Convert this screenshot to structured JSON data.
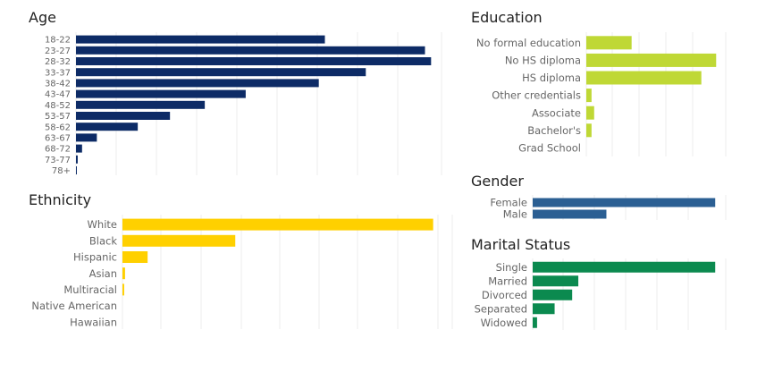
{
  "chart_data": [
    {
      "id": "age",
      "type": "bar",
      "orientation": "horizontal",
      "title": "Age",
      "color": "#0d2b66",
      "categories": [
        "18-22",
        "23-27",
        "28-32",
        "33-37",
        "38-42",
        "43-47",
        "48-52",
        "53-57",
        "58-62",
        "63-67",
        "68-72",
        "73-77",
        "78+"
      ],
      "values": [
        286,
        401,
        408,
        333,
        279,
        195,
        148,
        108,
        71,
        24,
        7,
        2,
        1
      ],
      "xlim": [
        0,
        420
      ],
      "grid": true
    },
    {
      "id": "ethnicity",
      "type": "bar",
      "orientation": "horizontal",
      "title": "Ethnicity",
      "color": "#ffd000",
      "categories": [
        "White",
        "Black",
        "Hispanic",
        "Asian",
        "Multiracial",
        "Native American",
        "Hawaiian"
      ],
      "values": [
        358,
        130,
        29,
        3,
        2,
        0,
        0
      ],
      "xlim": [
        0,
        380
      ],
      "grid": true
    },
    {
      "id": "education",
      "type": "bar",
      "orientation": "horizontal",
      "title": "Education",
      "color": "#bfd835",
      "categories": [
        "No formal education",
        "No HS diploma",
        "HS diploma",
        "Other credentials",
        "Associate",
        "Bachelor's",
        "Grad School"
      ],
      "values": [
        52,
        149,
        132,
        6,
        9,
        6,
        0
      ],
      "xlim": [
        0,
        160
      ],
      "grid": true
    },
    {
      "id": "gender",
      "type": "bar",
      "orientation": "horizontal",
      "title": "Gender",
      "color": "#2b5f93",
      "categories": [
        "Female",
        "Male"
      ],
      "values": [
        208,
        84
      ],
      "xlim": [
        0,
        220
      ],
      "grid": true
    },
    {
      "id": "marital",
      "type": "bar",
      "orientation": "horizontal",
      "title": "Marital Status",
      "color": "#0b8a4f",
      "categories": [
        "Single",
        "Married",
        "Divorced",
        "Separated",
        "Widowed"
      ],
      "values": [
        208,
        52,
        45,
        25,
        5
      ],
      "xlim": [
        0,
        220
      ],
      "grid": true
    }
  ]
}
